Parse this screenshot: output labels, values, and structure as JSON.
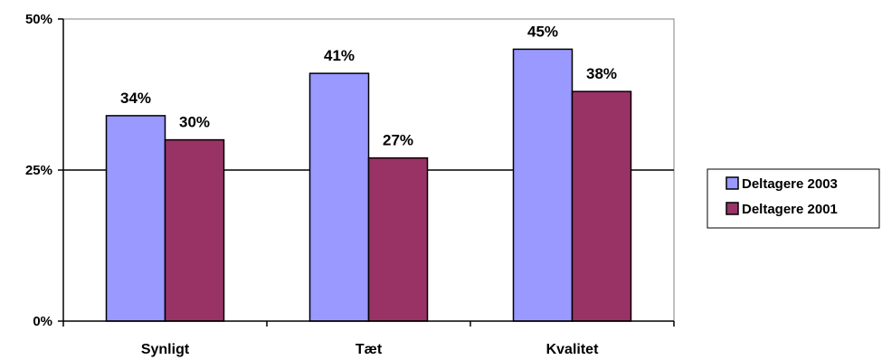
{
  "chart_data": {
    "type": "bar",
    "categories": [
      "Synligt",
      "Tæt",
      "Kvalitet"
    ],
    "series": [
      {
        "name": "Deltagere 2003",
        "values": [
          34,
          41,
          45
        ],
        "labels": [
          "34%",
          "41%",
          "45%"
        ],
        "color": "#9999ff"
      },
      {
        "name": "Deltagere 2001",
        "values": [
          30,
          27,
          38
        ],
        "labels": [
          "30%",
          "27%",
          "38%"
        ],
        "color": "#993366"
      }
    ],
    "y_ticks": [
      {
        "value": 0,
        "label": "0%"
      },
      {
        "value": 25,
        "label": "25%"
      },
      {
        "value": 50,
        "label": "50%"
      }
    ],
    "ylim": [
      0,
      50
    ],
    "gridlines": true,
    "legend_position": "right"
  }
}
